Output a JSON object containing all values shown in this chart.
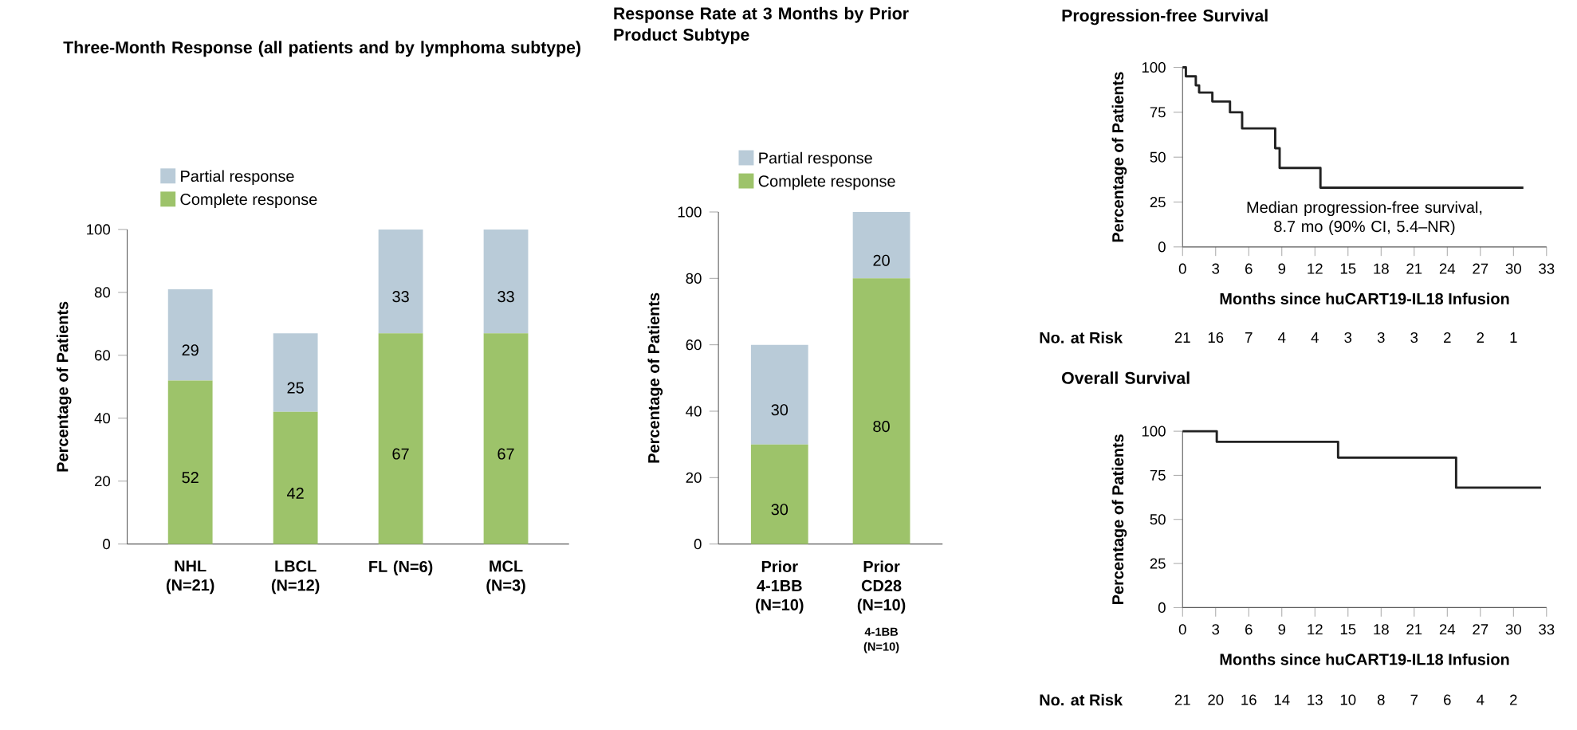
{
  "chart_data": [
    {
      "type": "bar",
      "title": "Three-Month Response (all patients and by lymphoma subtype)",
      "ylabel": "Percentage of Patients",
      "categories": [
        "NHL (N=21)",
        "LBCL (N=12)",
        "FL (N=6)",
        "MCL (N=3)"
      ],
      "stacked": true,
      "data_labels": true,
      "legend": "top left",
      "ylim": [
        0,
        100
      ],
      "yticks": [
        0,
        20,
        40,
        60,
        80,
        100
      ],
      "series": [
        {
          "name": "Complete response",
          "color": "#9dc36a",
          "values": [
            52,
            42,
            67,
            67
          ]
        },
        {
          "name": "Partial response",
          "color": "#b9cbd8",
          "values": [
            29,
            25,
            33,
            33
          ]
        }
      ]
    },
    {
      "type": "bar",
      "title": "Response Rate at 3 Months by Prior Product Subtype",
      "ylabel": "Percentage of Patients",
      "categories": [
        "Prior 4-1BB (N=10)",
        "Prior CD28 (N=10)"
      ],
      "stacked": true,
      "data_labels": true,
      "legend": "top left",
      "ylim": [
        0,
        100
      ],
      "yticks": [
        0,
        20,
        40,
        60,
        80,
        100
      ],
      "annotations": [
        "4-1BB (N=10)"
      ],
      "series": [
        {
          "name": "Complete response",
          "color": "#9dc36a",
          "values": [
            30,
            80
          ]
        },
        {
          "name": "Partial response",
          "color": "#b9cbd8",
          "values": [
            30,
            20
          ]
        }
      ]
    },
    {
      "type": "step",
      "title": "Progression-free Survival",
      "xlabel": "Months since huCART19-IL18 Infusion",
      "ylabel": "Percentage of Patients",
      "xlim": [
        0,
        33
      ],
      "xticks": [
        0,
        3,
        6,
        9,
        12,
        15,
        18,
        21,
        24,
        27,
        30,
        33
      ],
      "ylim": [
        0,
        100
      ],
      "yticks": [
        0,
        25,
        50,
        75,
        100
      ],
      "x": [
        0,
        0.3,
        1.2,
        1.5,
        2.7,
        4.3,
        5.4,
        8.4,
        8.8,
        12.5,
        30.9
      ],
      "series": [
        {
          "color": "#222222",
          "values": [
            100,
            95,
            90,
            86,
            81,
            75,
            66,
            55,
            44,
            33,
            33
          ]
        }
      ],
      "annotations": [
        "Median progression-free survival, 8.7 mo (90% CI, 5.4–NR)",
        "No. at Risk",
        "21",
        "16",
        "7",
        "4",
        "4",
        "3",
        "3",
        "3",
        "2",
        "2",
        "1"
      ]
    },
    {
      "type": "step",
      "title": "Overall Survival",
      "xlabel": "Months since huCART19-IL18 Infusion",
      "ylabel": "Percentage of Patients",
      "xlim": [
        0,
        33
      ],
      "xticks": [
        0,
        3,
        6,
        9,
        12,
        15,
        18,
        21,
        24,
        27,
        30,
        33
      ],
      "ylim": [
        0,
        100
      ],
      "yticks": [
        0,
        25,
        50,
        75,
        100
      ],
      "x": [
        0,
        3.1,
        14.1,
        24.8,
        32.5
      ],
      "series": [
        {
          "color": "#222222",
          "values": [
            100,
            94,
            85,
            68,
            68
          ]
        }
      ],
      "annotations": [
        "No. at Risk",
        "21",
        "20",
        "16",
        "14",
        "13",
        "10",
        "8",
        "7",
        "6",
        "4",
        "2"
      ]
    }
  ]
}
